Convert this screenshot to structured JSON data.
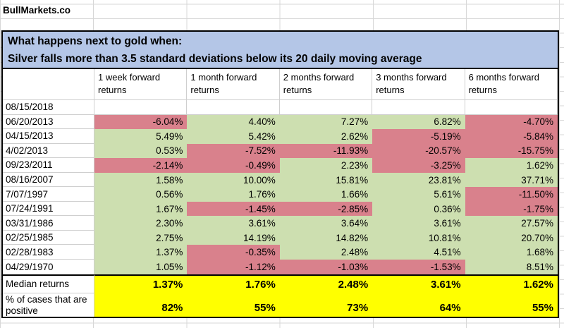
{
  "brand": "BullMarkets.co",
  "title": {
    "line1": "What happens next to gold when:",
    "line2": "Silver falls more than 3.5 standard deviations below its 20 daily moving average"
  },
  "colors": {
    "positive_fill": "#cddfb0",
    "negative_fill": "#d9818c",
    "highlight": "#ffff00",
    "title_bg": "#b4c6e7"
  },
  "table": {
    "columns": [
      "1 week forward returns",
      "1 month forward returns",
      "2 months forward returns",
      "3 months forward returns",
      "6 months forward returns"
    ],
    "rows": [
      {
        "date": "08/15/2018",
        "values": [
          "",
          "",
          "",
          "",
          ""
        ],
        "colors": [
          "",
          "",
          "",
          "",
          ""
        ]
      },
      {
        "date": "06/20/2013",
        "values": [
          "-6.04%",
          "4.40%",
          "7.27%",
          "6.82%",
          "-4.70%"
        ],
        "colors": [
          "r",
          "g",
          "g",
          "g",
          "r"
        ]
      },
      {
        "date": "04/15/2013",
        "values": [
          "5.49%",
          "5.42%",
          "2.62%",
          "-5.19%",
          "-5.84%"
        ],
        "colors": [
          "g",
          "g",
          "g",
          "r",
          "r"
        ]
      },
      {
        "date": "4/02/2013",
        "values": [
          "0.53%",
          "-7.52%",
          "-11.93%",
          "-20.57%",
          "-15.75%"
        ],
        "colors": [
          "g",
          "r",
          "r",
          "r",
          "r"
        ]
      },
      {
        "date": "09/23/2011",
        "values": [
          "-2.14%",
          "-0.49%",
          "2.23%",
          "-3.25%",
          "1.62%"
        ],
        "colors": [
          "r",
          "r",
          "g",
          "r",
          "g"
        ]
      },
      {
        "date": "08/16/2007",
        "values": [
          "1.58%",
          "10.00%",
          "15.81%",
          "23.81%",
          "37.71%"
        ],
        "colors": [
          "g",
          "g",
          "g",
          "g",
          "g"
        ]
      },
      {
        "date": "7/07/1997",
        "values": [
          "0.56%",
          "1.76%",
          "1.66%",
          "5.61%",
          "-11.50%"
        ],
        "colors": [
          "g",
          "g",
          "g",
          "g",
          "r"
        ]
      },
      {
        "date": "07/24/1991",
        "values": [
          "1.67%",
          "-1.45%",
          "-2.85%",
          "0.36%",
          "-1.75%"
        ],
        "colors": [
          "g",
          "r",
          "r",
          "g",
          "r"
        ]
      },
      {
        "date": "03/31/1986",
        "values": [
          "2.30%",
          "3.61%",
          "3.64%",
          "3.61%",
          "27.57%"
        ],
        "colors": [
          "g",
          "g",
          "g",
          "g",
          "g"
        ]
      },
      {
        "date": "02/25/1985",
        "values": [
          "2.75%",
          "14.19%",
          "14.82%",
          "10.81%",
          "20.70%"
        ],
        "colors": [
          "g",
          "g",
          "g",
          "g",
          "g"
        ]
      },
      {
        "date": "02/28/1983",
        "values": [
          "1.37%",
          "-0.35%",
          "2.48%",
          "4.51%",
          "1.68%"
        ],
        "colors": [
          "g",
          "r",
          "g",
          "g",
          "g"
        ]
      },
      {
        "date": "04/29/1970",
        "values": [
          "1.05%",
          "-1.12%",
          "-1.03%",
          "-1.53%",
          "8.51%"
        ],
        "colors": [
          "g",
          "r",
          "r",
          "r",
          "g"
        ]
      }
    ],
    "median": {
      "label": "Median returns",
      "values": [
        "1.37%",
        "1.76%",
        "2.48%",
        "3.61%",
        "1.62%"
      ]
    },
    "pct_positive": {
      "label": "% of cases that are positive",
      "values": [
        "82%",
        "55%",
        "73%",
        "64%",
        "55%"
      ]
    }
  }
}
